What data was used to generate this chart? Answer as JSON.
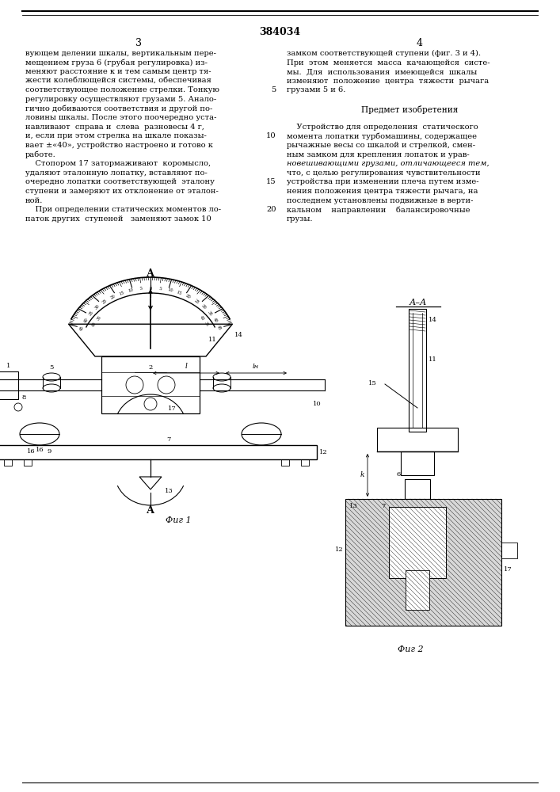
{
  "patent_number": "384034",
  "page_left": "3",
  "page_right": "4",
  "left_col": [
    "вующем делении шкалы, вертикальным пере-",
    "мещением груза 6 (грубая регулировка) из-",
    "меняют расстояние к и тем самым центр тя-",
    "жести колеблющейся системы, обеспечивая",
    "соответствующее положение стрелки. Тонкую",
    "регулировку осуществляют грузами 5. Анало-",
    "гично добиваются соответствия и другой по-",
    "ловины шкалы. После этого поочередно уста-",
    "навливают  справа и  слева  разновесы 4 г,",
    "и, если при этом стрелка на шкале показы-",
    "вает ±«40», устройство настроено и готово к",
    "работе.",
    "    Стопором 17 затормаживают  коромысло,",
    "удаляют эталонную лопатку, вставляют по-",
    "очередно лопатки соответствующей  эталону",
    "ступени и замеряют их отклонение от эталон-",
    "ной.",
    "    При определении статических моментов ло-",
    "паток других  ступеней   заменяют замок 10"
  ],
  "right_col": [
    "замком соответствующей ступени (фиг. 3 и 4).",
    "При  этом  меняется  масса  качающейся  систе-",
    "мы.  Для  использования  имеющейся  шкалы",
    "изменяют  положение  центра  тяжести  рычага",
    "грузами 5 и 6.",
    "",
    "Предмет изобретения",
    "",
    "    Устройство для определения  статического",
    "момента лопатки турбомашины, содержащее",
    "рычажные весы со шкалой и стрелкой, смен-",
    "ным замком для крепления лопаток и урав-",
    "новешивающими грузами, отличающееся тем,",
    "что, с целью регулирования чувствительности",
    "устройства при изменении плеча путем изме-",
    "нения положения центра тяжести рычага, на",
    "последнем установлены подвижные в верти-",
    "кальном    направлении    балансировочные",
    "грузы."
  ],
  "line_num_indices": [
    4,
    9,
    14,
    17
  ],
  "line_num_values": [
    "5",
    "10",
    "15",
    "20"
  ],
  "fig1_caption": "Фиг 1",
  "fig2_caption": "Фиг 2",
  "fig2_section_label": "А–А",
  "bg": "#ffffff"
}
